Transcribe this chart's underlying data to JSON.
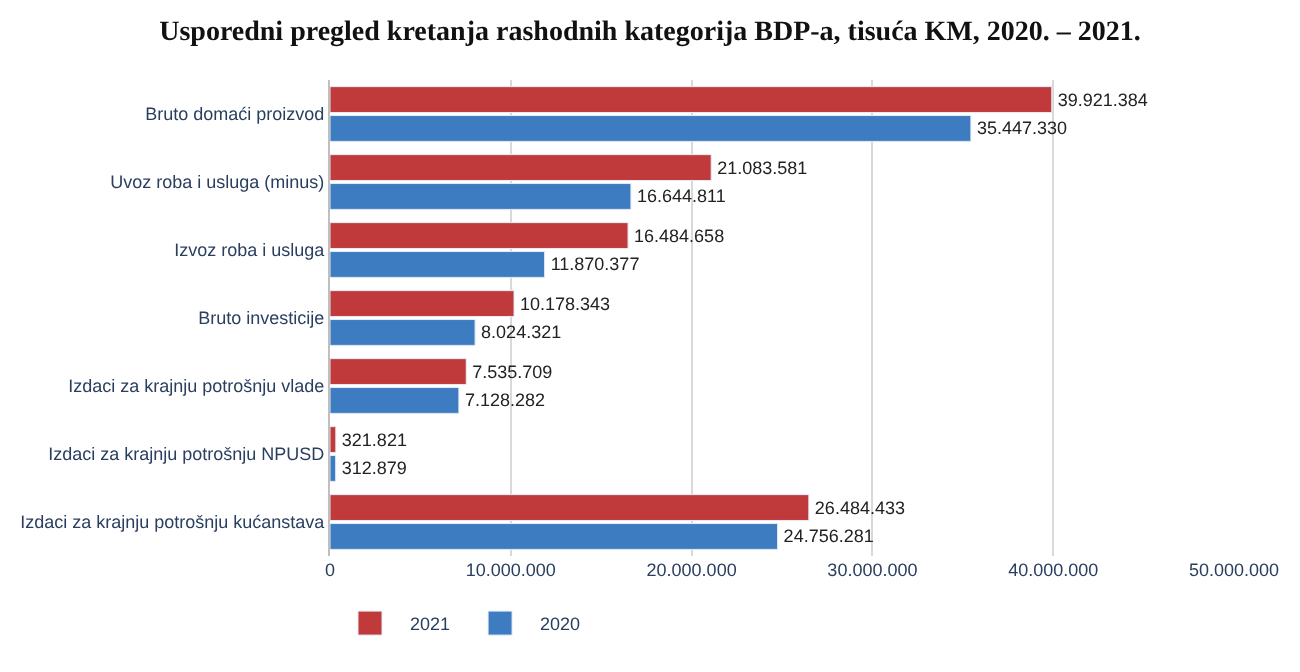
{
  "chart_data": {
    "type": "bar",
    "orientation": "horizontal",
    "title": "Usporedni pregled kretanja rashodnih kategorija BDP-a, tisuća KM, 2020. – 2021.",
    "categories": [
      "Bruto domaći proizvod",
      "Uvoz roba i usluga (minus)",
      "Izvoz roba i usluga",
      "Bruto investicije",
      "Izdaci za krajnju potrošnju vlade",
      "Izdaci za krajnju potrošnju NPUSD",
      "Izdaci za krajnju potrošnju kućanstava"
    ],
    "series": [
      {
        "name": "2021",
        "color": "#c0393b",
        "values": [
          39921384,
          21083581,
          16484658,
          10178343,
          7535709,
          321821,
          26484433
        ],
        "value_labels": [
          "39.921.384",
          "21.083.581",
          "16.484.658",
          "10.178.343",
          "7.535.709",
          "321.821",
          "26.484.433"
        ]
      },
      {
        "name": "2020",
        "color": "#3d7cc0",
        "values": [
          35447330,
          16644811,
          11870377,
          8024321,
          7128282,
          312879,
          24756281
        ],
        "value_labels": [
          "35.447.330",
          "16.644.811",
          "11.870.377",
          "8.024.321",
          "7.128.282",
          "312.879",
          "24.756.281"
        ]
      }
    ],
    "xlim": [
      0,
      50000000
    ],
    "xticks": [
      0,
      {
        "value": 10000000,
        "label": "10.000.000"
      },
      {
        "value": 20000000,
        "label": "20.000.000"
      },
      {
        "value": 30000000,
        "label": "30.000.000"
      },
      {
        "value": 40000000,
        "label": "40.000.000"
      },
      {
        "value": 50000000,
        "label": "50.000.000"
      }
    ],
    "grid": "x",
    "legend": "bottom left"
  }
}
